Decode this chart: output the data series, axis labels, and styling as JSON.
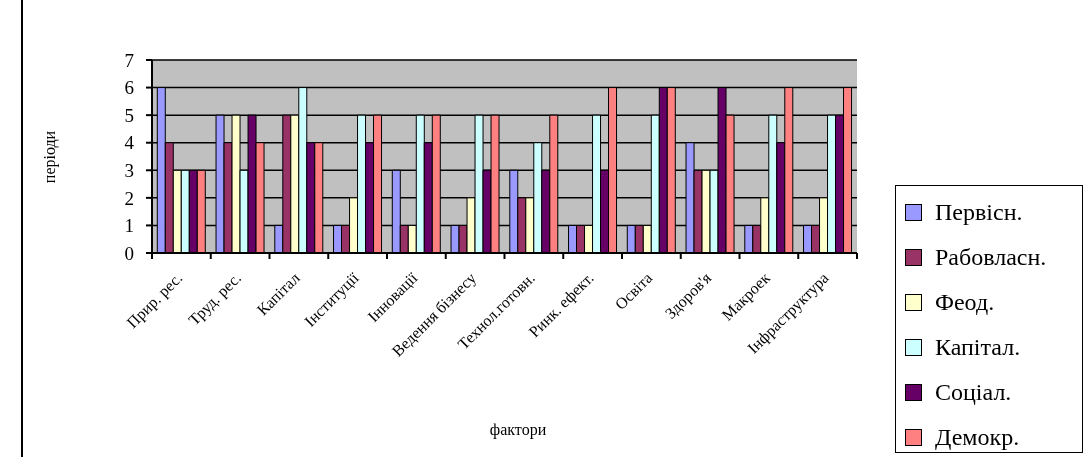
{
  "chart_data": {
    "type": "bar",
    "xlabel": "фактори",
    "ylabel": "періоди",
    "categories": [
      "Прир. рес.",
      "Труд. рес.",
      "Капітал",
      "Інституції",
      "Інновації",
      "Ведення бізнесу",
      "Технол.готовн.",
      "Ринк. ефект.",
      "Освіта",
      "Здоров'я",
      "Макроек",
      "Інфраструктура"
    ],
    "series": [
      {
        "name": "Первісн.",
        "color": "#9999ff",
        "values": [
          6,
          5,
          1,
          1,
          3,
          1,
          3,
          1,
          1,
          4,
          1,
          1
        ]
      },
      {
        "name": "Рабовласн.",
        "color": "#993366",
        "values": [
          4,
          4,
          5,
          1,
          1,
          1,
          2,
          1,
          1,
          3,
          1,
          1
        ]
      },
      {
        "name": "Феод.",
        "color": "#ffffcc",
        "values": [
          3,
          5,
          5,
          2,
          1,
          2,
          2,
          1,
          1,
          3,
          2,
          2
        ]
      },
      {
        "name": "Капітал.",
        "color": "#ccffff",
        "values": [
          3,
          3,
          6,
          5,
          5,
          5,
          4,
          5,
          5,
          3,
          5,
          5
        ]
      },
      {
        "name": "Соціал.",
        "color": "#660066",
        "values": [
          3,
          5,
          4,
          4,
          4,
          3,
          3,
          3,
          6,
          6,
          4,
          5
        ]
      },
      {
        "name": "Демокр.",
        "color": "#ff8080",
        "values": [
          3,
          4,
          4,
          5,
          5,
          5,
          5,
          6,
          6,
          5,
          6,
          6
        ]
      }
    ],
    "ylim": [
      0,
      7
    ],
    "yticks": [
      0,
      1,
      2,
      3,
      4,
      5,
      6,
      7
    ],
    "grid": "y",
    "legend": "right"
  }
}
